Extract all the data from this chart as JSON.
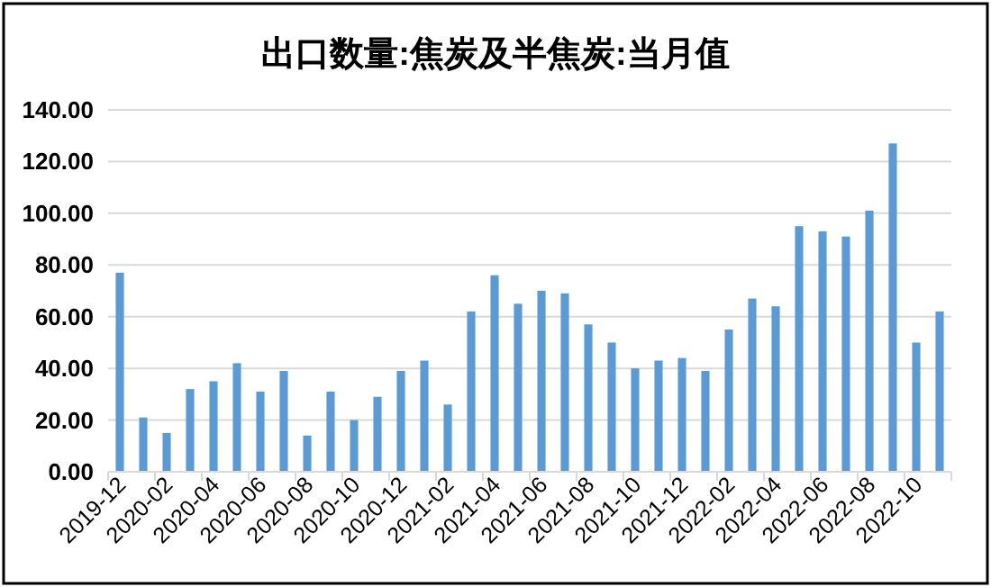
{
  "chart_data": {
    "type": "bar",
    "title": "出口数量:焦炭及半焦炭:当月值",
    "categories": [
      "2019-12",
      null,
      "2020-02",
      null,
      "2020-04",
      null,
      "2020-06",
      null,
      "2020-08",
      null,
      "2020-10",
      null,
      "2020-12",
      null,
      "2021-02",
      null,
      "2021-04",
      null,
      "2021-06",
      null,
      "2021-08",
      null,
      "2021-10",
      null,
      "2021-12",
      null,
      "2022-02",
      null,
      "2022-04",
      null,
      "2022-06",
      null,
      "2022-08",
      null,
      "2022-10",
      null
    ],
    "values": [
      77,
      21,
      15,
      32,
      35,
      42,
      31,
      39,
      14,
      31,
      20,
      29,
      39,
      43,
      26,
      62,
      76,
      65,
      70,
      69,
      57,
      50,
      40,
      43,
      44,
      39,
      55,
      67,
      64,
      95,
      93,
      91,
      101,
      127,
      50,
      62
    ],
    "color": "#5b9bd5",
    "ylim": [
      0,
      140
    ],
    "yticks": [
      {
        "value": 0,
        "label": "0.00"
      },
      {
        "value": 20,
        "label": "20.00"
      },
      {
        "value": 40,
        "label": "40.00"
      },
      {
        "value": 60,
        "label": "60.00"
      },
      {
        "value": 80,
        "label": "80.00"
      },
      {
        "value": 100,
        "label": "100.00"
      },
      {
        "value": 120,
        "label": "120.00"
      },
      {
        "value": 140,
        "label": "140.00"
      }
    ],
    "grid": "y"
  }
}
